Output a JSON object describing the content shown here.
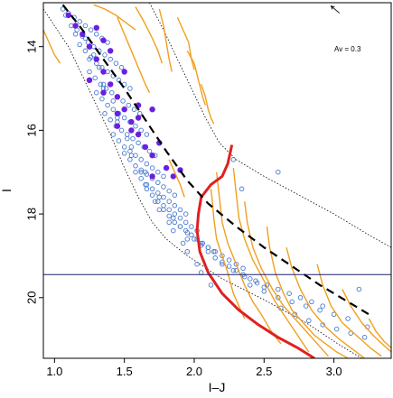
{
  "chart_data": {
    "type": "scatter",
    "title": "",
    "xlabel": "I–J",
    "ylabel": "I",
    "xlim": [
      0.92,
      3.41
    ],
    "ylim": [
      21.45,
      12.95
    ],
    "y_inverted": true,
    "grid": false,
    "x_ticks": [
      1.0,
      1.5,
      2.0,
      2.5,
      3.0
    ],
    "x_tick_labels": [
      "1.0",
      "1.5",
      "2.0",
      "2.5",
      "3.0"
    ],
    "y_ticks": [
      14,
      16,
      18,
      20
    ],
    "y_tick_labels": [
      "14",
      "16",
      "18",
      "20"
    ],
    "annotation": {
      "text": "Av = 0.3",
      "arrow_from": [
        3.04,
        13.2
      ],
      "arrow_to": [
        2.98,
        13.03
      ]
    },
    "horizontal_line": {
      "y": 19.45,
      "color": "#1f1f6b"
    },
    "colors": {
      "open_points": "#4a7bd0",
      "filled_points": "#6a1fe0",
      "tracks": "#f0a020",
      "highlight_track": "#e02020",
      "dashed_fit": "#000000",
      "envelope": "#000000",
      "frame": "#000000"
    },
    "dashed_fit": {
      "x": [
        1.06,
        1.2,
        1.35,
        1.5,
        1.65,
        1.8,
        1.95,
        2.1,
        2.3,
        2.5,
        2.7,
        2.9,
        3.1,
        3.25
      ],
      "y": [
        13.0,
        13.6,
        14.3,
        15.0,
        15.75,
        16.5,
        17.2,
        17.75,
        18.3,
        18.8,
        19.25,
        19.7,
        20.1,
        20.4
      ]
    },
    "envelope_left": {
      "x": [
        0.92,
        1.1,
        1.2,
        1.3,
        1.4,
        1.5,
        1.6,
        1.7,
        1.8,
        1.95,
        2.2,
        2.5,
        2.8,
        3.05,
        3.2
      ],
      "y": [
        13.1,
        14.0,
        14.7,
        15.4,
        16.1,
        16.9,
        17.6,
        18.2,
        18.6,
        19.0,
        19.55,
        20.05,
        20.6,
        21.15,
        21.45
      ]
    },
    "envelope_right": {
      "x": [
        1.68,
        1.78,
        1.88,
        1.98,
        2.08,
        2.18,
        2.3,
        2.5,
        2.75,
        3.0,
        3.25,
        3.41
      ],
      "y": [
        12.95,
        13.6,
        14.3,
        15.0,
        15.7,
        16.3,
        16.7,
        17.1,
        17.55,
        18.0,
        18.5,
        18.8
      ]
    },
    "series": [
      {
        "name": "",
        "marker": "open-circle",
        "x": [
          1.06,
          1.1,
          1.14,
          1.18,
          1.22,
          1.26,
          1.3,
          1.34,
          1.38,
          1.12,
          1.16,
          1.2,
          1.24,
          1.28,
          1.32,
          1.36,
          1.4,
          1.44,
          1.48,
          1.18,
          1.22,
          1.26,
          1.3,
          1.34,
          1.38,
          1.42,
          1.46,
          1.5,
          1.54,
          1.25,
          1.29,
          1.33,
          1.37,
          1.41,
          1.45,
          1.49,
          1.53,
          1.57,
          1.61,
          1.3,
          1.34,
          1.38,
          1.42,
          1.46,
          1.5,
          1.54,
          1.58,
          1.62,
          1.66,
          1.36,
          1.4,
          1.44,
          1.48,
          1.52,
          1.56,
          1.6,
          1.64,
          1.68,
          1.72,
          1.42,
          1.46,
          1.5,
          1.54,
          1.58,
          1.62,
          1.66,
          1.7,
          1.74,
          1.78,
          1.5,
          1.54,
          1.58,
          1.62,
          1.66,
          1.7,
          1.74,
          1.78,
          1.82,
          1.86,
          1.58,
          1.62,
          1.66,
          1.7,
          1.74,
          1.78,
          1.82,
          1.86,
          1.9,
          1.94,
          1.66,
          1.7,
          1.74,
          1.78,
          1.82,
          1.86,
          1.9,
          1.94,
          1.98,
          2.02,
          1.78,
          1.82,
          1.86,
          1.9,
          1.94,
          1.98,
          2.02,
          2.06,
          2.1,
          2.14,
          1.9,
          1.95,
          2.0,
          2.05,
          2.1,
          2.15,
          2.2,
          2.25,
          2.3,
          2.35,
          2.05,
          2.1,
          2.15,
          2.2,
          2.25,
          2.3,
          2.35,
          2.4,
          2.45,
          2.5,
          2.2,
          2.28,
          2.36,
          2.44,
          2.52,
          2.6,
          2.68,
          2.76,
          2.84,
          2.92,
          2.4,
          2.5,
          2.6,
          2.7,
          2.8,
          2.9,
          3.0,
          3.1,
          2.62,
          2.72,
          2.82,
          2.92,
          3.02,
          3.12,
          3.22,
          2.28,
          2.34,
          2.6,
          3.18,
          3.24,
          1.28,
          1.35,
          1.45,
          1.55,
          1.65,
          1.75,
          1.85,
          1.95,
          2.05,
          1.22,
          1.32,
          1.42,
          1.52,
          1.62,
          1.72,
          1.82,
          1.92,
          2.02,
          2.12,
          1.08,
          1.15,
          1.25,
          1.35,
          1.45,
          1.55,
          1.65,
          1.75,
          1.85,
          1.95
        ],
        "y": [
          13.1,
          13.2,
          13.3,
          13.4,
          13.5,
          13.6,
          13.7,
          13.8,
          13.9,
          13.5,
          13.6,
          13.75,
          13.9,
          14.0,
          14.1,
          14.2,
          14.3,
          14.4,
          14.5,
          13.95,
          14.1,
          14.25,
          14.4,
          14.5,
          14.6,
          14.7,
          14.8,
          14.9,
          15.0,
          14.6,
          14.75,
          14.9,
          15.0,
          15.1,
          15.2,
          15.3,
          15.4,
          15.5,
          15.6,
          15.1,
          15.25,
          15.4,
          15.5,
          15.6,
          15.7,
          15.8,
          15.9,
          16.0,
          16.1,
          15.6,
          15.75,
          15.9,
          16.0,
          16.1,
          16.2,
          16.3,
          16.4,
          16.5,
          16.6,
          16.1,
          16.25,
          16.4,
          16.5,
          16.6,
          16.7,
          16.8,
          16.9,
          17.0,
          17.1,
          16.55,
          16.7,
          16.85,
          16.95,
          17.05,
          17.15,
          17.25,
          17.35,
          17.45,
          17.55,
          17.0,
          17.15,
          17.3,
          17.4,
          17.5,
          17.6,
          17.7,
          17.8,
          17.9,
          18.0,
          17.4,
          17.55,
          17.7,
          17.8,
          17.9,
          18.0,
          18.1,
          18.2,
          18.3,
          18.4,
          17.9,
          18.05,
          18.2,
          18.3,
          18.4,
          18.5,
          18.6,
          18.7,
          18.8,
          18.9,
          18.3,
          18.45,
          18.6,
          18.7,
          18.8,
          18.9,
          19.0,
          19.1,
          19.2,
          19.3,
          18.75,
          18.9,
          19.05,
          19.15,
          19.25,
          19.35,
          19.45,
          19.55,
          19.65,
          19.75,
          19.2,
          19.35,
          19.5,
          19.6,
          19.7,
          19.8,
          19.9,
          20.0,
          20.1,
          20.2,
          19.7,
          19.85,
          20.0,
          20.1,
          20.2,
          20.3,
          20.4,
          20.5,
          20.25,
          20.4,
          20.55,
          20.65,
          20.75,
          20.85,
          20.95,
          16.7,
          17.4,
          17.0,
          19.8,
          20.7,
          14.2,
          14.9,
          15.8,
          16.6,
          17.3,
          17.9,
          18.4,
          18.9,
          19.4,
          13.8,
          14.5,
          15.3,
          16.2,
          17.0,
          17.7,
          18.2,
          18.7,
          19.2,
          19.7,
          13.25,
          13.7,
          14.3,
          15.0,
          15.7,
          16.4,
          17.0,
          17.6,
          18.1,
          18.6
        ]
      },
      {
        "name": "",
        "marker": "filled-circle",
        "x": [
          1.1,
          1.15,
          1.2,
          1.25,
          1.3,
          1.35,
          1.4,
          1.45,
          1.5,
          1.55,
          1.6,
          1.65,
          1.7,
          1.75,
          1.8,
          1.85,
          1.25,
          1.35,
          1.45,
          1.55,
          1.6,
          1.7,
          1.3,
          1.4,
          1.5,
          1.9,
          1.6,
          1.45,
          1.35,
          1.7
        ],
        "y": [
          13.25,
          13.5,
          13.7,
          14.0,
          14.3,
          14.6,
          14.9,
          15.2,
          15.5,
          15.8,
          16.1,
          16.4,
          16.6,
          16.3,
          16.9,
          17.1,
          14.8,
          15.1,
          15.6,
          16.0,
          15.4,
          17.1,
          13.55,
          14.1,
          14.6,
          16.95,
          15.7,
          15.9,
          13.85,
          15.5
        ]
      }
    ],
    "tracks": [
      {
        "x": [
          1.45,
          1.5,
          1.55,
          1.6,
          1.65,
          1.68
        ],
        "y": [
          13.3,
          13.7,
          14.1,
          14.5,
          14.9,
          15.1
        ]
      },
      {
        "x": [
          1.58,
          1.64,
          1.7,
          1.74,
          1.77
        ],
        "y": [
          13.05,
          13.4,
          13.8,
          14.1,
          14.4
        ]
      },
      {
        "x": [
          1.75,
          1.78,
          1.8,
          1.82,
          1.84
        ],
        "y": [
          13.1,
          13.5,
          13.9,
          14.3,
          14.6
        ]
      },
      {
        "x": [
          1.88,
          1.92,
          1.96,
          1.98,
          2.0
        ],
        "y": [
          13.3,
          13.6,
          13.9,
          14.3,
          14.55
        ]
      },
      {
        "x": [
          1.95,
          2.0,
          2.03,
          2.06,
          2.08
        ],
        "y": [
          14.1,
          14.4,
          14.8,
          15.2,
          15.4
        ]
      },
      {
        "x": [
          2.05,
          2.08,
          2.1,
          2.12,
          2.14
        ],
        "y": [
          14.9,
          15.2,
          15.5,
          15.7,
          15.85
        ]
      },
      {
        "x": [
          1.28,
          1.36,
          1.44,
          1.52,
          1.58
        ],
        "y": [
          13.0,
          13.1,
          13.25,
          13.45,
          13.6
        ]
      },
      {
        "x": [
          0.92,
          0.96,
          1.0,
          1.04
        ],
        "y": [
          13.6,
          13.9,
          14.2,
          14.4
        ]
      },
      {
        "x": [
          1.82,
          1.86,
          1.9,
          1.93
        ],
        "y": [
          16.7,
          17.0,
          17.3,
          17.6
        ]
      },
      {
        "x": [
          2.12,
          2.13,
          2.14,
          2.16,
          2.2,
          2.24,
          2.28,
          2.32,
          2.36
        ],
        "y": [
          17.4,
          17.7,
          18.1,
          18.6,
          19.0,
          19.4,
          19.9,
          20.2,
          20.5
        ]
      },
      {
        "x": [
          2.16,
          2.18,
          2.2,
          2.24,
          2.3,
          2.36,
          2.42,
          2.48,
          2.55,
          2.62
        ],
        "y": [
          17.0,
          17.6,
          18.2,
          18.7,
          19.2,
          19.7,
          20.1,
          20.4,
          20.8,
          21.1
        ]
      },
      {
        "x": [
          2.28,
          2.3,
          2.32,
          2.36,
          2.42,
          2.5,
          2.58,
          2.66,
          2.74,
          2.82
        ],
        "y": [
          16.9,
          17.5,
          18.1,
          18.6,
          19.1,
          19.6,
          20.1,
          20.5,
          20.9,
          21.3
        ]
      },
      {
        "x": [
          2.36,
          2.38,
          2.42,
          2.48,
          2.56,
          2.64,
          2.72,
          2.8,
          2.88,
          2.96
        ],
        "y": [
          17.7,
          18.2,
          18.8,
          19.3,
          19.8,
          20.2,
          20.5,
          20.8,
          21.1,
          21.4
        ]
      },
      {
        "x": [
          2.52,
          2.54,
          2.58,
          2.64,
          2.7,
          2.78,
          2.86,
          2.94,
          3.02,
          3.1
        ],
        "y": [
          18.3,
          18.8,
          19.4,
          19.9,
          20.3,
          20.6,
          20.9,
          21.1,
          21.3,
          21.45
        ]
      },
      {
        "x": [
          2.66,
          2.7,
          2.76,
          2.84,
          2.94,
          3.04,
          3.14,
          3.22
        ],
        "y": [
          18.8,
          19.3,
          19.8,
          20.3,
          20.7,
          21.0,
          21.25,
          21.45
        ]
      },
      {
        "x": [
          2.88,
          2.92,
          2.98,
          3.06,
          3.16,
          3.26,
          3.34
        ],
        "y": [
          19.2,
          19.7,
          20.2,
          20.6,
          20.9,
          21.2,
          21.4
        ]
      },
      {
        "x": [
          3.06,
          3.12,
          3.2,
          3.28,
          3.36,
          3.41
        ],
        "y": [
          19.8,
          20.2,
          20.6,
          20.9,
          21.15,
          21.3
        ]
      },
      {
        "x": [
          3.25,
          3.3,
          3.36,
          3.41
        ],
        "y": [
          20.5,
          20.8,
          21.05,
          21.2
        ]
      }
    ],
    "highlight_track": {
      "x": [
        2.27,
        2.24,
        2.2,
        2.12,
        2.05,
        2.03,
        2.02,
        2.04,
        2.1,
        2.2,
        2.32,
        2.46,
        2.6,
        2.74,
        2.86
      ],
      "y": [
        16.35,
        16.8,
        17.1,
        17.3,
        17.6,
        18.0,
        18.4,
        18.9,
        19.4,
        19.9,
        20.3,
        20.65,
        20.95,
        21.2,
        21.45
      ]
    }
  }
}
